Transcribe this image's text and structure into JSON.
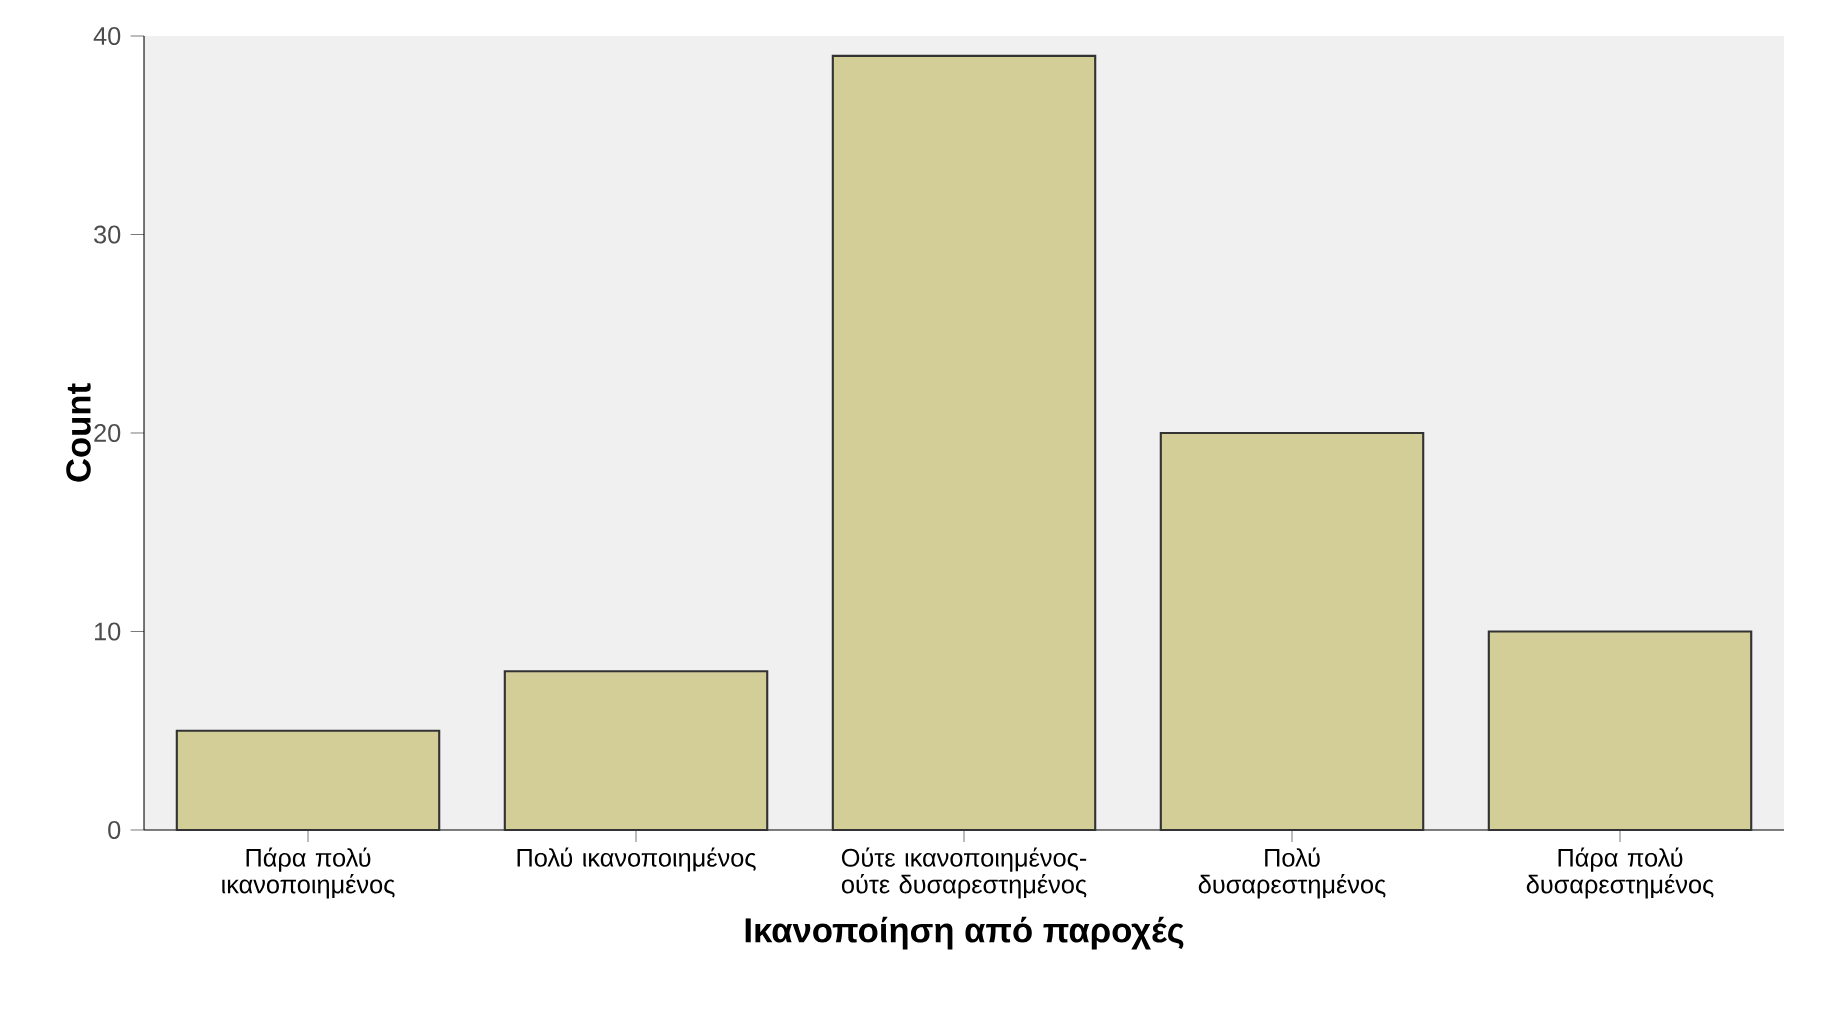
{
  "chart_data": {
    "type": "bar",
    "xlabel": "Ικανοποίηση από παροχές",
    "ylabel": "Count",
    "categories": [
      "Πάρα πολύ ικανοποιημένος",
      "Πολύ ικανοποιημένος",
      "Ούτε ικανοποιημένος- ούτε δυσαρεστημένος",
      "Πολύ δυσαρεστημένος",
      "Πάρα πολύ δυσαρεστημένος"
    ],
    "values": [
      5,
      8,
      39,
      20,
      10
    ],
    "color": "#d3cd98",
    "ylim": [
      0,
      40
    ],
    "yticks": [
      0,
      10,
      20,
      30,
      40
    ]
  }
}
